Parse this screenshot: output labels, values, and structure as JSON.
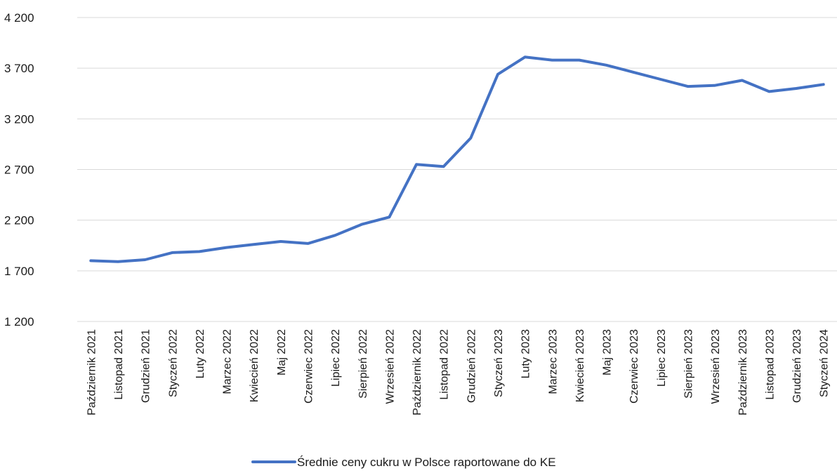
{
  "chart_data": {
    "type": "line",
    "title": "",
    "xlabel": "",
    "ylabel": "",
    "ylim": [
      1200,
      4200
    ],
    "yticks": [
      1200,
      1700,
      2200,
      2700,
      3200,
      3700,
      4200
    ],
    "ytick_labels": [
      "1 200",
      "1 700",
      "2 200",
      "2 700",
      "3 200",
      "3 700",
      "4 200"
    ],
    "grid": true,
    "legend_position": "bottom",
    "categories": [
      "Październik 2021",
      "Listopad 2021",
      "Grudzień 2021",
      "Styczeń 2022",
      "Luty 2022",
      "Marzec 2022",
      "Kwiecień 2022",
      "Maj 2022",
      "Czerwiec 2022",
      "Lipiec 2022",
      "Sierpień 2022",
      "Wrzesień 2022",
      "Październik 2022",
      "Listopad 2022",
      "Grudzień 2022",
      "Styczeń 2023",
      "Luty 2023",
      "Marzec 2023",
      "Kwiecień 2023",
      "Maj 2023",
      "Czerwiec 2023",
      "Lipiec 2023",
      "Sierpień 2023",
      "Wrzesień 2023",
      "Październik 2023",
      "Listopad 2023",
      "Grudzień 2023",
      "Styczeń 2024"
    ],
    "series": [
      {
        "name": "Średnie ceny cukru w Polsce  raportowane do KE",
        "color": "#4472c4",
        "values": [
          1800,
          1790,
          1810,
          1880,
          1890,
          1930,
          1960,
          1990,
          1970,
          2050,
          2160,
          2230,
          2750,
          2730,
          3010,
          3640,
          3810,
          3780,
          3780,
          3730,
          3660,
          3590,
          3520,
          3530,
          3580,
          3470,
          3500,
          3540
        ]
      }
    ]
  }
}
